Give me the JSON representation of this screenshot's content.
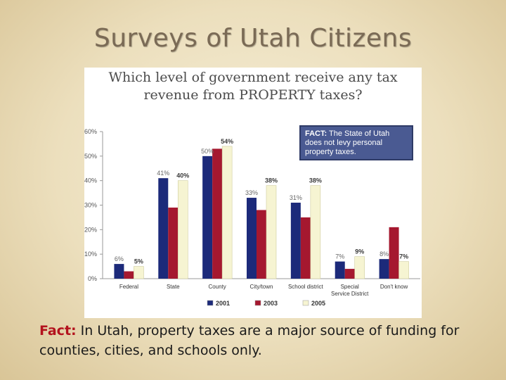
{
  "slide": {
    "title": "Surveys of Utah Citizens",
    "footer_lead": "Fact:",
    "footer_text": "In Utah, property taxes are a major source of funding for counties, cities, and schools only."
  },
  "chart_data": {
    "type": "bar",
    "title_line1": "Which level of government receive any tax",
    "title_line2": "revenue from PROPERTY taxes?",
    "categories": [
      "Federal",
      "State",
      "County",
      "City/town",
      "School district",
      "Special|Service District",
      "Don't know"
    ],
    "series": [
      {
        "name": "2001",
        "color": "#1c2a7a",
        "values": [
          6,
          41,
          50,
          33,
          31,
          7,
          8
        ]
      },
      {
        "name": "2003",
        "color": "#a5182f",
        "values": [
          3,
          29,
          53,
          28,
          25,
          4,
          21
        ]
      },
      {
        "name": "2005",
        "color": "#f6f4d2",
        "values": [
          5,
          40,
          54,
          38,
          38,
          9,
          7
        ]
      }
    ],
    "data_labels": [
      {
        "category": 0,
        "series": 0,
        "text": "6%"
      },
      {
        "category": 0,
        "series": 2,
        "text": "5%"
      },
      {
        "category": 1,
        "series": 0,
        "text": "41%"
      },
      {
        "category": 1,
        "series": 2,
        "text": "40%"
      },
      {
        "category": 2,
        "series": 0,
        "text": "50%"
      },
      {
        "category": 2,
        "series": 2,
        "text": "54%"
      },
      {
        "category": 3,
        "series": 0,
        "text": "33%"
      },
      {
        "category": 3,
        "series": 2,
        "text": "38%"
      },
      {
        "category": 4,
        "series": 0,
        "text": "31%"
      },
      {
        "category": 4,
        "series": 2,
        "text": "38%"
      },
      {
        "category": 5,
        "series": 0,
        "text": "7%"
      },
      {
        "category": 5,
        "series": 2,
        "text": "9%"
      },
      {
        "category": 6,
        "series": 0,
        "text": "8%"
      },
      {
        "category": 6,
        "series": 2,
        "text": "7%"
      }
    ],
    "y_ticks": [
      "0%",
      "10%",
      "20%",
      "30%",
      "40%",
      "50%",
      "60%"
    ],
    "ylim": [
      0,
      60
    ],
    "legend_position": "bottom",
    "annotation": {
      "lead": "FACT:",
      "text": "The State of Utah does not levy personal property taxes."
    }
  }
}
